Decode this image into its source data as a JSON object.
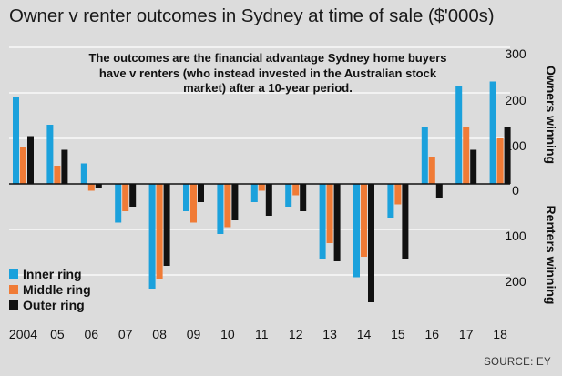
{
  "header": {
    "title": "Owner v renter outcomes in Sydney at time of sale ($'000s)",
    "subtitle": "The outcomes are the financial advantage Sydney home buyers have v renters (who instead invested in the Australian stock market) after a 10-year period.",
    "source": "SOURCE: EY"
  },
  "legend": [
    {
      "label": "Inner ring"
    },
    {
      "label": "Middle ring"
    },
    {
      "label": "Outer ring"
    }
  ],
  "axis": {
    "owners_label": "Owners winning",
    "renters_label": "Renters winning",
    "ticks": [
      "300",
      "200",
      "100",
      "0",
      "100",
      "200"
    ]
  },
  "colors": {
    "background": "#dcdcdc",
    "inner": "#1ba1dc",
    "middle": "#f07b36",
    "outer": "#111111",
    "grid": "#ffffff"
  },
  "chart_data": {
    "type": "bar",
    "title": "Owner v renter outcomes in Sydney at time of sale ($'000s)",
    "xlabel": "",
    "ylabel": "Owners winning (+) / Renters winning (-), $'000s",
    "ylim": [
      -300,
      300
    ],
    "categories": [
      "2004",
      "05",
      "06",
      "07",
      "08",
      "09",
      "10",
      "11",
      "12",
      "13",
      "14",
      "15",
      "16",
      "17",
      "18"
    ],
    "series": [
      {
        "name": "Inner ring",
        "values": [
          190,
          130,
          45,
          -85,
          -230,
          -60,
          -110,
          -40,
          -50,
          -165,
          -205,
          -75,
          125,
          215,
          225
        ]
      },
      {
        "name": "Middle ring",
        "values": [
          80,
          40,
          -15,
          -60,
          -210,
          -85,
          -95,
          -15,
          -25,
          -130,
          -160,
          -45,
          60,
          125,
          100
        ]
      },
      {
        "name": "Outer ring",
        "values": [
          105,
          75,
          -10,
          -50,
          -180,
          -40,
          -80,
          -70,
          -60,
          -170,
          -260,
          -165,
          -30,
          75,
          125
        ]
      }
    ]
  }
}
